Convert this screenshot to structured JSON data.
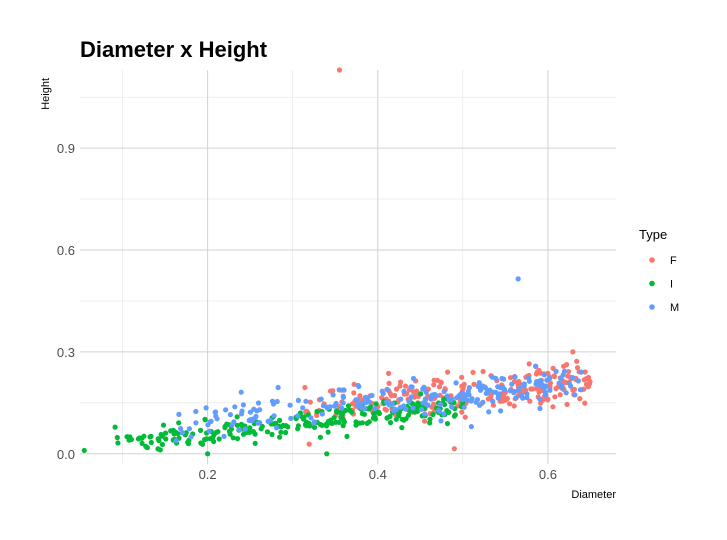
{
  "chart_data": {
    "type": "scatter",
    "title": "Diameter x Height",
    "xlabel": "Diameter",
    "ylabel": "Height",
    "xlim": [
      0.05,
      0.68
    ],
    "ylim": [
      -0.03,
      1.13
    ],
    "xticks": [
      0.2,
      0.4,
      0.6
    ],
    "xtick_labels": [
      "0.2",
      "0.4",
      "0.6"
    ],
    "xminor": [
      0.1,
      0.3,
      0.5
    ],
    "yticks": [
      0.0,
      0.3,
      0.6,
      0.9
    ],
    "ytick_labels": [
      "0.0",
      "0.3",
      "0.6",
      "0.9"
    ],
    "yminor": [
      0.15,
      0.45,
      0.75,
      1.05
    ],
    "grid": true,
    "legend": {
      "title": "Type",
      "position": "right"
    },
    "series": [
      {
        "name": "F",
        "color": "#F8766D",
        "outliers": [
          [
            0.355,
            1.13
          ],
          [
            0.49,
            0.015
          ]
        ],
        "range": [
          0.31,
          0.65
        ],
        "n": 240,
        "slope": 0.26,
        "intercept": 0.05,
        "noise": 0.03
      },
      {
        "name": "I",
        "color": "#00BA38",
        "outliers": [
          [
            0.055,
            0.01
          ],
          [
            0.34,
            0.0
          ],
          [
            0.2,
            0.0
          ]
        ],
        "range": [
          0.09,
          0.5
        ],
        "n": 240,
        "slope": 0.27,
        "intercept": 0.005,
        "noise": 0.018
      },
      {
        "name": "M",
        "color": "#619CFF",
        "outliers": [
          [
            0.565,
            0.515
          ],
          [
            0.51,
            0.08
          ]
        ],
        "range": [
          0.16,
          0.64
        ],
        "n": 240,
        "slope": 0.27,
        "intercept": 0.04,
        "noise": 0.025
      }
    ]
  }
}
